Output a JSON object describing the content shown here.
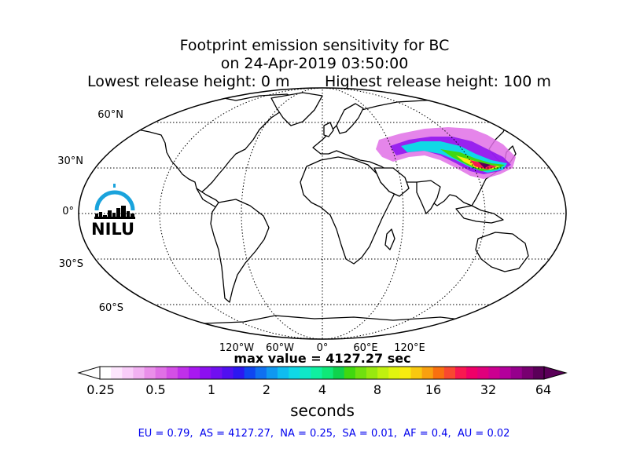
{
  "title": {
    "line1": "Footprint emission sensitivity for BC",
    "line2": "on 24-Apr-2019 03:50:00",
    "line3_left": "Lowest release height: 0 m",
    "line3_right": "Highest release height: 100 m"
  },
  "map": {
    "projection": "Robinson",
    "lat_labels": [
      "60°N",
      "30°N",
      "0°",
      "30°S",
      "60°S"
    ],
    "lon_labels": [
      "120°W",
      "60°W",
      "0°",
      "60°E",
      "120°E"
    ],
    "colors": {
      "land_outline": "#000000",
      "ocean": "#ffffff",
      "gridline": "#000000"
    },
    "plume_region": "Central and East Asia"
  },
  "logo": {
    "text": "NILU",
    "icon": "nilu-arc-skyline-icon",
    "color": "#1aa3dc"
  },
  "max_value_label": "max value = 4127.27 sec",
  "colorbar": {
    "tick_labels": [
      "0.25",
      "0.5",
      "1",
      "2",
      "4",
      "8",
      "16",
      "32",
      "64"
    ],
    "units": "seconds",
    "colors": [
      "#ffffff",
      "#fde6fd",
      "#f9cdf9",
      "#f2b1f2",
      "#ea8fea",
      "#e070e6",
      "#d44fe6",
      "#c030ea",
      "#a818f0",
      "#8c10f0",
      "#7010f0",
      "#5010f0",
      "#2c18f0",
      "#1046f0",
      "#1070f0",
      "#1098f0",
      "#10bcf0",
      "#10d8e6",
      "#10e8c8",
      "#10f0a0",
      "#10e878",
      "#10d24c",
      "#40d810",
      "#70e010",
      "#98e810",
      "#c0f010",
      "#e0f410",
      "#f8ec10",
      "#f8c810",
      "#f8a010",
      "#f87010",
      "#f84830",
      "#f81850",
      "#f00068",
      "#e0007c",
      "#cc0090",
      "#b4009c",
      "#96008c",
      "#780070",
      "#5a0058"
    ]
  },
  "summary": "EU = 0.79,  AS = 4127.27,  NA = 0.25,  SA = 0.01,  AF = 0.4,  AU = 0.02"
}
